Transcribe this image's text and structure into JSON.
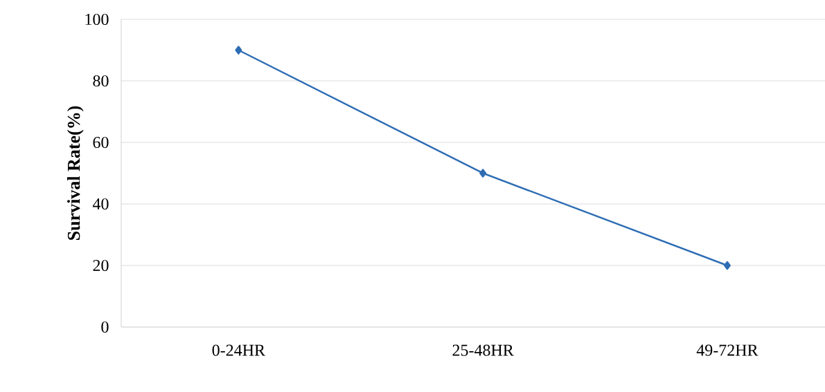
{
  "chart_data": {
    "type": "line",
    "ylabel": "Survival Rate(%)",
    "categories": [
      "0-24HR",
      "25-48HR",
      "49-72HR"
    ],
    "series": [
      {
        "color": "#2e6db4",
        "values": [
          90,
          50,
          20
        ]
      }
    ],
    "ylim": [
      0,
      100
    ],
    "yticks": [
      0,
      20,
      40,
      60,
      80,
      100
    ],
    "grid": "y",
    "marker": "diamond"
  }
}
